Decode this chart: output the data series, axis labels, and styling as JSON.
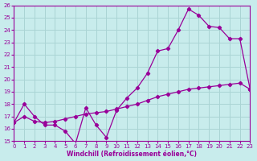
{
  "xlabel": "Windchill (Refroidissement éolien,°C)",
  "ylabel": "",
  "bg_color": "#c8ecec",
  "grid_color": "#aad4d4",
  "line_color": "#990099",
  "xlim": [
    0,
    23
  ],
  "ylim": [
    15,
    26
  ],
  "xticks": [
    0,
    1,
    2,
    3,
    4,
    5,
    6,
    7,
    8,
    9,
    10,
    11,
    12,
    13,
    14,
    15,
    16,
    17,
    18,
    19,
    20,
    21,
    22,
    23
  ],
  "yticks": [
    15,
    16,
    17,
    18,
    19,
    20,
    21,
    22,
    23,
    24,
    25,
    26
  ],
  "line1_x": [
    0,
    1,
    2,
    3,
    4,
    5,
    6,
    7,
    8,
    9,
    10,
    11,
    12,
    13,
    14,
    15,
    16,
    17,
    18,
    19,
    20,
    21,
    22,
    23
  ],
  "line1_y": [
    16.5,
    18.0,
    17.0,
    16.3,
    16.3,
    15.8,
    14.8,
    17.7,
    16.3,
    15.3,
    17.5,
    18.5,
    19.3,
    20.5,
    22.3,
    22.5,
    24.0,
    25.7,
    25.2,
    24.3,
    24.2,
    23.3,
    23.3,
    19.2
  ],
  "line2_x": [
    0,
    1,
    2,
    3,
    4,
    5,
    6,
    7,
    8,
    9,
    10,
    11,
    12,
    13,
    14,
    15,
    16,
    17,
    18,
    19,
    20,
    21,
    22,
    23
  ],
  "line2_y": [
    16.5,
    17.0,
    16.6,
    16.5,
    16.6,
    16.8,
    17.0,
    17.2,
    17.3,
    17.4,
    17.6,
    17.8,
    18.0,
    18.3,
    18.6,
    18.8,
    19.0,
    19.2,
    19.3,
    19.4,
    19.5,
    19.6,
    19.7,
    19.2
  ]
}
